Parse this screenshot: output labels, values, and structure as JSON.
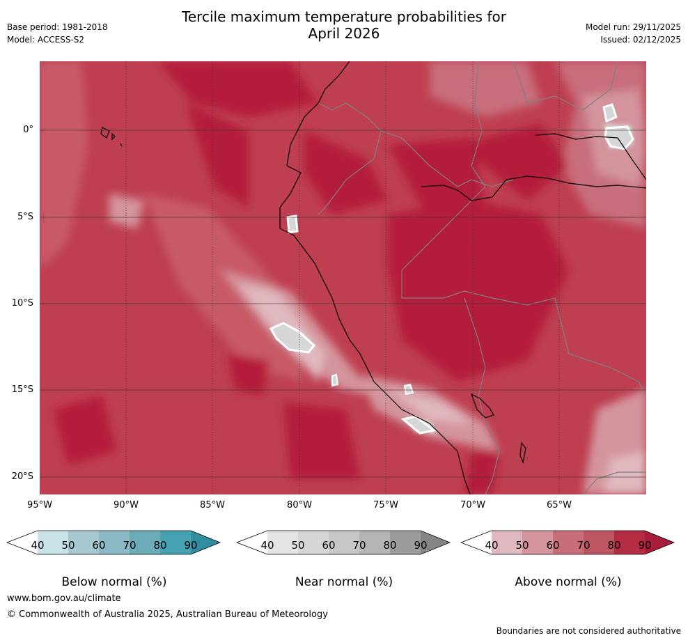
{
  "header": {
    "base_period": "Base period: 1981-2018",
    "model": "Model: ACCESS-S2",
    "title_line1": "Tercile maximum temperature probabilities for",
    "title_line2": "April 2026",
    "model_run": "Model run: 29/11/2025",
    "issued": "Issued: 02/12/2025"
  },
  "map": {
    "lat_labels": [
      "0°",
      "5°S",
      "10°S",
      "15°S",
      "20°S"
    ],
    "lon_labels": [
      "95°W",
      "90°W",
      "85°W",
      "80°W",
      "75°W",
      "70°W",
      "65°W"
    ]
  },
  "colorbars": [
    {
      "label": "Below normal (%)",
      "ticks": [
        "40",
        "50",
        "60",
        "70",
        "80",
        "90"
      ],
      "colors": [
        "#ffffff",
        "#c8e2e8",
        "#a6c8d0",
        "#8ab8c4",
        "#6bacb8",
        "#46a1b0",
        "#2e8ea0"
      ]
    },
    {
      "label": "Near normal (%)",
      "ticks": [
        "40",
        "50",
        "60",
        "70",
        "80",
        "90"
      ],
      "colors": [
        "#ffffff",
        "#e4e4e4",
        "#d6d6d6",
        "#c7c7c7",
        "#b4b4b4",
        "#9c9c9c",
        "#858585"
      ]
    },
    {
      "label": "Above normal (%)",
      "ticks": [
        "40",
        "50",
        "60",
        "70",
        "80",
        "90"
      ],
      "colors": [
        "#ffffff",
        "#e0b8bf",
        "#d4949d",
        "#c86e7b",
        "#be5562",
        "#b42c43",
        "#a81b3a"
      ]
    }
  ],
  "footer": {
    "url": "www.bom.gov.au/climate",
    "copyright": "© Commonwealth of Australia 2025, Australian Bureau of Meteorology",
    "disclaimer": "Boundaries are not considered authoritative"
  }
}
